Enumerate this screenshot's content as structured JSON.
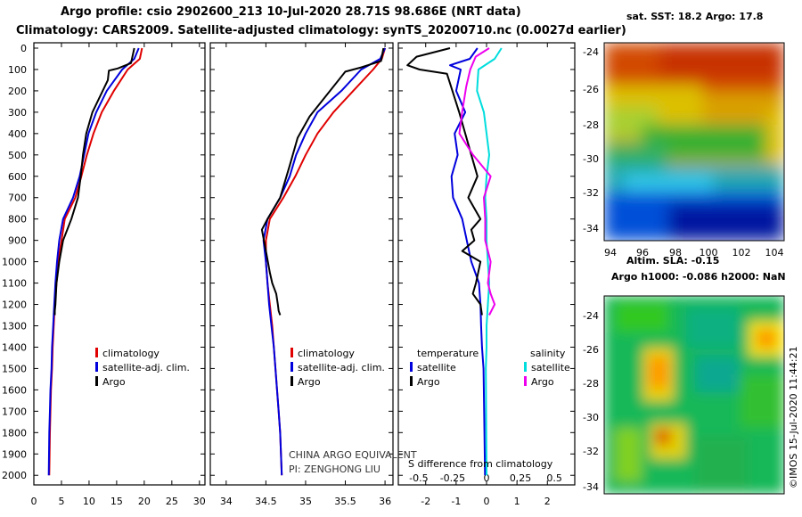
{
  "header": {
    "line1": "Argo profile: csio 2902600_213 10-Jul-2020 28.71S 98.686E (NRT data)",
    "line2": "Climatology: CARS2009. Satellite-adjusted climatology: synTS_20200710.nc (0.0027d earlier)"
  },
  "colors": {
    "climatology": "#e00000",
    "satellite": "#0000dd",
    "argo": "#000000",
    "sat_salinity": "#00dddd",
    "argo_salinity": "#ee00ee"
  },
  "chart_data": [
    {
      "type": "line",
      "ylim": [
        2070,
        0
      ],
      "xlim": [
        0,
        31
      ],
      "y_ticks": [
        0,
        100,
        200,
        300,
        400,
        500,
        600,
        700,
        800,
        900,
        1000,
        1100,
        1200,
        1300,
        1400,
        1500,
        1600,
        1700,
        1800,
        1900,
        2000
      ],
      "x_ticks": [
        0,
        5,
        10,
        15,
        20,
        25,
        30
      ],
      "legend": [
        "climatology",
        "satellite-adj. clim.",
        "Argo"
      ],
      "series": [
        {
          "name": "climatology",
          "x": [
            19.6,
            19.2,
            17.0,
            14.5,
            12.3,
            10.8,
            9.6,
            8.6,
            7.5,
            5.6,
            5.0,
            4.4,
            4.1,
            3.8,
            3.6,
            3.4,
            3.3,
            3.1,
            3.0,
            2.9,
            2.8
          ],
          "y": [
            0,
            50,
            100,
            200,
            300,
            400,
            500,
            600,
            700,
            800,
            900,
            1000,
            1100,
            1200,
            1300,
            1400,
            1500,
            1600,
            1700,
            1800,
            2000
          ]
        },
        {
          "name": "satellite-adj. clim.",
          "x": [
            19.0,
            18.2,
            16.0,
            13.2,
            11.3,
            9.9,
            9.1,
            8.3,
            7.1,
            5.3,
            4.6,
            4.2,
            3.9,
            3.7,
            3.5,
            3.3,
            3.2,
            3.0,
            2.9,
            2.8,
            2.7
          ],
          "y": [
            0,
            50,
            100,
            200,
            300,
            400,
            500,
            600,
            700,
            800,
            900,
            1000,
            1100,
            1200,
            1300,
            1400,
            1500,
            1600,
            1700,
            1800,
            2000
          ]
        },
        {
          "name": "Argo",
          "x": [
            18.2,
            17.6,
            15.2,
            13.6,
            13.4,
            10.6,
            9.5,
            8.9,
            8.5,
            8.0,
            6.8,
            5.3,
            4.6,
            4.1,
            4.0,
            3.9,
            3.8,
            3.8
          ],
          "y": [
            0,
            70,
            95,
            105,
            150,
            300,
            400,
            500,
            600,
            700,
            800,
            900,
            1000,
            1100,
            1150,
            1200,
            1230,
            1250
          ]
        }
      ]
    },
    {
      "type": "line",
      "ylim": [
        2070,
        0
      ],
      "xlim": [
        33.8,
        36.1
      ],
      "x_ticks": [
        34,
        34.5,
        35,
        35.5,
        36
      ],
      "legend": [
        "climatology",
        "satellite-adj. clim.",
        "Argo"
      ],
      "annotations": [
        "CHINA ARGO EQUIVALENT",
        "PI: ZENGHONG LIU"
      ],
      "series": [
        {
          "name": "climatology",
          "x": [
            36.0,
            35.96,
            35.85,
            35.6,
            35.35,
            35.15,
            35.0,
            34.87,
            34.72,
            34.55,
            34.5,
            34.5,
            34.52,
            34.55,
            34.58,
            34.6,
            34.62,
            34.64,
            34.66,
            34.68,
            34.7
          ],
          "y": [
            0,
            50,
            100,
            200,
            300,
            400,
            500,
            600,
            700,
            800,
            900,
            1000,
            1100,
            1200,
            1300,
            1400,
            1500,
            1600,
            1700,
            1800,
            2000
          ]
        },
        {
          "name": "satellite-adj. clim.",
          "x": [
            36.0,
            35.94,
            35.7,
            35.45,
            35.15,
            35.0,
            34.88,
            34.8,
            34.68,
            34.52,
            34.47,
            34.5,
            34.52,
            34.54,
            34.57,
            34.6,
            34.62,
            34.64,
            34.66,
            34.68,
            34.7
          ],
          "y": [
            0,
            50,
            100,
            200,
            300,
            400,
            500,
            600,
            700,
            800,
            900,
            1000,
            1100,
            1200,
            1300,
            1400,
            1500,
            1600,
            1700,
            1800,
            2000
          ]
        },
        {
          "name": "Argo",
          "x": [
            35.98,
            35.95,
            35.7,
            35.5,
            35.2,
            35.05,
            34.9,
            34.8,
            34.68,
            34.52,
            34.45,
            34.5,
            34.55,
            34.58,
            34.63,
            34.65,
            34.66,
            34.68
          ],
          "y": [
            0,
            60,
            90,
            110,
            250,
            320,
            420,
            550,
            700,
            800,
            850,
            950,
            1050,
            1100,
            1150,
            1200,
            1230,
            1250
          ]
        }
      ]
    },
    {
      "type": "line",
      "ylim": [
        2070,
        0
      ],
      "xlim": [
        -2.9,
        2.9
      ],
      "x_ticks": [
        -2,
        -1,
        0,
        1,
        2
      ],
      "x_ticks_salinity": [
        -0.5,
        -0.25,
        0,
        0.25,
        0.5
      ],
      "xlabel": "S difference from climatology",
      "legend": [
        "temperature satellite",
        "temperature Argo",
        "salinity satellite",
        "salinity Argo"
      ],
      "series": [
        {
          "name": "temperature satellite",
          "x": [
            -0.3,
            -0.55,
            -1.2,
            -0.85,
            -1.0,
            -0.7,
            -1.05,
            -0.95,
            -1.15,
            -1.1,
            -0.8,
            -0.5,
            -0.25,
            -0.2,
            -0.18,
            -0.15,
            -0.1,
            -0.08,
            -0.05
          ],
          "y": [
            0,
            50,
            80,
            100,
            200,
            300,
            400,
            500,
            600,
            700,
            800,
            1000,
            1100,
            1200,
            1300,
            1400,
            1500,
            1700,
            2000
          ]
        },
        {
          "name": "temperature Argo",
          "x": [
            -1.2,
            -2.3,
            -2.6,
            -2.2,
            -1.3,
            -0.9,
            -0.7,
            -0.5,
            -0.3,
            -0.6,
            -0.2,
            -0.5,
            -0.4,
            -0.8,
            -0.2,
            -0.35,
            -0.45,
            -0.2,
            -0.15
          ],
          "y": [
            0,
            40,
            80,
            100,
            120,
            300,
            400,
            500,
            600,
            700,
            800,
            850,
            900,
            950,
            1000,
            1100,
            1150,
            1200,
            1250
          ]
        },
        {
          "name": "salinity satellite",
          "x": [
            0.11,
            0.06,
            -0.06,
            -0.07,
            -0.02,
            0,
            0.02,
            0.0,
            -0.01,
            0,
            0.0,
            0.01,
            0.02,
            0.01,
            0,
            0,
            -0.005,
            0
          ],
          "y": [
            0,
            50,
            100,
            200,
            300,
            400,
            500,
            600,
            700,
            800,
            900,
            1000,
            1100,
            1200,
            1300,
            1400,
            1500,
            2000
          ]
        },
        {
          "name": "salinity Argo",
          "x": [
            0.02,
            -0.08,
            -0.12,
            -0.15,
            -0.18,
            -0.2,
            -0.1,
            0.03,
            -0.02,
            -0.01,
            -0.01,
            0.03,
            0.01,
            0.03,
            0.06,
            0.02
          ],
          "y": [
            0,
            40,
            100,
            180,
            300,
            400,
            500,
            600,
            700,
            800,
            900,
            1000,
            1100,
            1150,
            1200,
            1250
          ]
        }
      ]
    },
    {
      "type": "heatmap",
      "title": "sat. SST: 18.2 Argo: 17.8",
      "x_ticks": [
        "94",
        "96",
        "98",
        "100",
        "102",
        "104"
      ],
      "y_ticks": [
        "-24",
        "-26",
        "-28",
        "-30",
        "-32",
        "-34"
      ]
    },
    {
      "type": "heatmap",
      "title": "Altim. SLA: -0.15",
      "subtitle": "Argo h1000: -0.086 h2000: NaN",
      "y_ticks": [
        "-24",
        "-26",
        "-28",
        "-30",
        "-32",
        "-34"
      ]
    }
  ],
  "legends": {
    "temp": [
      "climatology",
      "satellite-adj. clim.",
      "Argo"
    ],
    "salt": [
      "climatology",
      "satellite-adj. clim.",
      "Argo"
    ],
    "diff_heads": [
      "temperature",
      "salinity"
    ],
    "diff_temp": [
      "satellite",
      "Argo"
    ],
    "diff_salt": [
      "satellite",
      "Argo"
    ]
  },
  "credit": "©IMOS 15-Jul-2020 11:44:21"
}
